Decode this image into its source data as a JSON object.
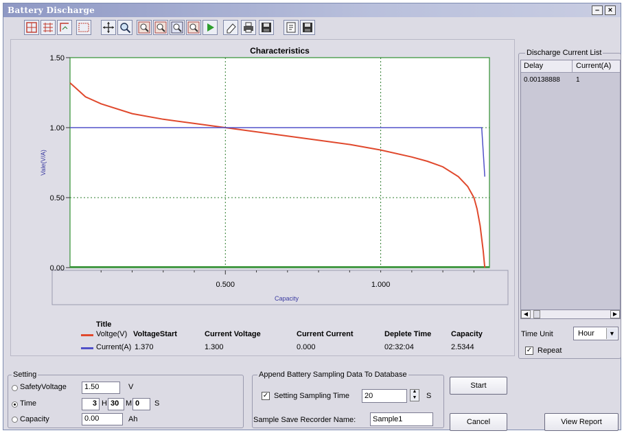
{
  "window": {
    "title": "Battery Discharge",
    "minimize": "–",
    "close": "×"
  },
  "toolbar": {
    "items": [
      "axis-options-icon",
      "grid-icon",
      "cursor-icon",
      "legend-icon",
      "crosshair-icon",
      "zoom-in-icon",
      "zoom-x-icon",
      "zoom-y-icon",
      "zoom-out-icon",
      "zoom-reset-icon",
      "play-icon",
      "eraser-icon",
      "print-icon",
      "save-icon",
      "export-icon",
      "save-data-icon"
    ]
  },
  "chart_data": {
    "type": "line",
    "title": "Characteristics",
    "xlabel": "Capacity",
    "ylabel": "Vale(V/A)",
    "xlim": [
      0.0,
      1.35
    ],
    "ylim": [
      0.0,
      1.5
    ],
    "x_ticks": [
      "0.500",
      "1.000"
    ],
    "y_ticks": [
      "0.00",
      "0.50",
      "1.00",
      "1.50"
    ],
    "grid": true,
    "series": [
      {
        "name": "Voltge(V)",
        "color": "#e0482c",
        "x": [
          0.0,
          0.05,
          0.1,
          0.2,
          0.3,
          0.4,
          0.5,
          0.6,
          0.7,
          0.8,
          0.9,
          1.0,
          1.1,
          1.15,
          1.2,
          1.25,
          1.28,
          1.3,
          1.31,
          1.32,
          1.33,
          1.335
        ],
        "y": [
          1.32,
          1.22,
          1.17,
          1.1,
          1.06,
          1.03,
          1.0,
          0.97,
          0.94,
          0.91,
          0.88,
          0.84,
          0.79,
          0.76,
          0.72,
          0.65,
          0.58,
          0.5,
          0.42,
          0.3,
          0.12,
          0.0
        ]
      },
      {
        "name": "Current(A)",
        "color": "#5050c8",
        "x": [
          0.0,
          1.325,
          1.335
        ],
        "y": [
          1.0,
          1.0,
          0.65
        ]
      }
    ]
  },
  "legend": {
    "title": "Title",
    "columns": [
      "VoltageStart",
      "Current Voltage",
      "Current Current",
      "Deplete Time",
      "Capacity"
    ],
    "rows": [
      {
        "name": "Voltge(V)",
        "values": [
          "1.370",
          "1.300",
          "0.000",
          "02:32:04",
          "2.5344"
        ]
      },
      {
        "name": "Current(A)",
        "values": []
      }
    ],
    "current_label": "Current(A)",
    "current_start": "1.370"
  },
  "discharge_list": {
    "title": "Discharge Current List",
    "columns": [
      "Delay",
      "Current(A)"
    ],
    "rows": [
      [
        "0.00138888",
        "1"
      ]
    ],
    "time_unit_label": "Time Unit",
    "time_unit_value": "Hour",
    "repeat_label": "Repeat",
    "repeat_checked": true
  },
  "setting": {
    "title": "Setting",
    "safety_voltage_label": "SafetyVoltage",
    "safety_voltage_value": "1.50",
    "safety_voltage_unit": "V",
    "time_label": "Time",
    "time_h": "3",
    "time_h_unit": "H",
    "time_m": "30",
    "time_m_unit": "M",
    "time_s": "0",
    "time_s_unit": "S",
    "capacity_label": "Capacity",
    "capacity_value": "0.00",
    "capacity_unit": "Ah",
    "selected": "Time"
  },
  "append": {
    "title": "Append Battery Sampling Data To Database",
    "sampling_label": "Setting Sampling Time",
    "sampling_value": "20",
    "sampling_unit": "S",
    "sampling_checked": true,
    "recorder_label": "Sample Save Recorder Name:",
    "recorder_value": "Sample1"
  },
  "buttons": {
    "start": "Start",
    "cancel": "Cancel",
    "view_report": "View Report"
  }
}
